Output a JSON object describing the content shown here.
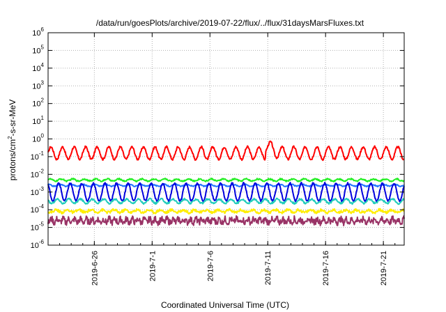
{
  "chart_data": {
    "type": "line",
    "title": "/data/run/goesPlots/archive/2019-07-22/flux/../flux/31daysMarsFluxes.txt",
    "xlabel": "Coordinated Universal Time (UTC)",
    "ylabel": {
      "prefix": "protons/cm",
      "sup": "2",
      "suffix": "-s-sr-MeV"
    },
    "yscale": "log",
    "ylim_exponent": [
      -6,
      6
    ],
    "xlim_day": [
      22.0,
      52.8
    ],
    "grid": true,
    "y_ticks": [
      {
        "exp": -6,
        "base": "10",
        "sup": "-6"
      },
      {
        "exp": -5,
        "base": "10",
        "sup": "-5"
      },
      {
        "exp": -4,
        "base": "10",
        "sup": "-4"
      },
      {
        "exp": -3,
        "base": "10",
        "sup": "-3"
      },
      {
        "exp": -2,
        "base": "10",
        "sup": "-2"
      },
      {
        "exp": -1,
        "base": "10",
        "sup": "-1"
      },
      {
        "exp": 0,
        "base": "10",
        "sup": "0"
      },
      {
        "exp": 1,
        "base": "10",
        "sup": "1"
      },
      {
        "exp": 2,
        "base": "10",
        "sup": "2"
      },
      {
        "exp": 3,
        "base": "10",
        "sup": "3"
      },
      {
        "exp": 4,
        "base": "10",
        "sup": "4"
      },
      {
        "exp": 5,
        "base": "10",
        "sup": "5"
      },
      {
        "exp": 6,
        "base": "10",
        "sup": "6"
      }
    ],
    "x_ticks": [
      {
        "day": 26,
        "label": "2019-6-26"
      },
      {
        "day": 31,
        "label": "2019-7-1"
      },
      {
        "day": 36,
        "label": "2019-7-6"
      },
      {
        "day": 41,
        "label": "2019-7-11"
      },
      {
        "day": 46,
        "label": "2019-7-16"
      },
      {
        "day": 51,
        "label": "2019-7-21"
      }
    ],
    "series": [
      {
        "color": "#ff0000",
        "width": 2.0,
        "baseline": -0.8,
        "amp": 0.35,
        "period": 1.0,
        "noise": 0.06,
        "jump_at": 40.8,
        "jump": 0.45
      },
      {
        "color": "#22ee22",
        "width": 2.0,
        "baseline": -2.32,
        "amp": 0.06,
        "period": 1.0,
        "noise": 0.04
      },
      {
        "color": "#2277ff",
        "width": 2.0,
        "baseline": -2.62,
        "amp": 0.05,
        "period": 1.0,
        "noise": 0.03
      },
      {
        "color": "#0000dd",
        "width": 2.0,
        "baseline": -3.0,
        "amp": 0.5,
        "period": 1.0,
        "noise": 0.05
      },
      {
        "color": "#22ccbb",
        "width": 2.0,
        "baseline": -3.52,
        "amp": 0.12,
        "period": 1.0,
        "noise": 0.05
      },
      {
        "color": "#ffee00",
        "width": 2.0,
        "baseline": -4.08,
        "amp": 0.07,
        "period": 1.0,
        "noise": 0.08
      },
      {
        "color": "#993366",
        "width": 2.0,
        "baseline": -4.62,
        "amp": 0.1,
        "period": 0.5,
        "noise": 0.18
      }
    ]
  }
}
